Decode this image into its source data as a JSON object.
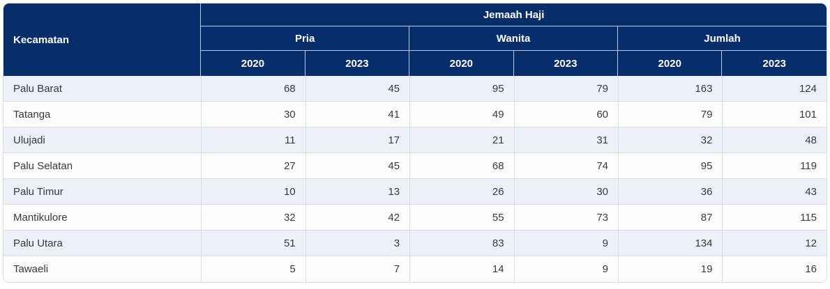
{
  "colors": {
    "header_bg": "#072e6b",
    "header_text": "#ffffff",
    "row_alt_bg": "#edf1f7",
    "row_bg": "#fdfdfd",
    "body_text": "#333a42",
    "grid_line": "#d6dee8"
  },
  "table": {
    "corner_header": "Kecamatan",
    "group_header": "Jemaah Haji",
    "subgroups": [
      "Pria",
      "Wanita",
      "Jumlah"
    ],
    "year_columns": [
      "2020",
      "2023",
      "2020",
      "2023",
      "2020",
      "2023"
    ],
    "rows": [
      {
        "kecamatan": "Palu Barat",
        "values": [
          68,
          45,
          95,
          79,
          163,
          124
        ]
      },
      {
        "kecamatan": "Tatanga",
        "values": [
          30,
          41,
          49,
          60,
          79,
          101
        ]
      },
      {
        "kecamatan": "Ulujadi",
        "values": [
          11,
          17,
          21,
          31,
          32,
          48
        ]
      },
      {
        "kecamatan": "Palu Selatan",
        "values": [
          27,
          45,
          68,
          74,
          95,
          119
        ]
      },
      {
        "kecamatan": "Palu Timur",
        "values": [
          10,
          13,
          26,
          30,
          36,
          43
        ]
      },
      {
        "kecamatan": "Mantikulore",
        "values": [
          32,
          42,
          55,
          73,
          87,
          115
        ]
      },
      {
        "kecamatan": "Palu Utara",
        "values": [
          51,
          3,
          83,
          9,
          134,
          12
        ]
      },
      {
        "kecamatan": "Tawaeli",
        "values": [
          5,
          7,
          14,
          9,
          19,
          16
        ]
      }
    ]
  },
  "chart_data": {
    "type": "table",
    "title": "Jemaah Haji",
    "row_label_column": "Kecamatan",
    "categories": [
      "Palu Barat",
      "Tatanga",
      "Ulujadi",
      "Palu Selatan",
      "Palu Timur",
      "Mantikulore",
      "Palu Utara",
      "Tawaeli"
    ],
    "columns": [
      "Kecamatan",
      "Pria 2020",
      "Pria 2023",
      "Wanita 2020",
      "Wanita 2023",
      "Jumlah 2020",
      "Jumlah 2023"
    ],
    "series": [
      {
        "name": "Pria 2020",
        "values": [
          68,
          30,
          11,
          27,
          10,
          32,
          51,
          5
        ]
      },
      {
        "name": "Pria 2023",
        "values": [
          45,
          41,
          17,
          45,
          13,
          42,
          3,
          7
        ]
      },
      {
        "name": "Wanita 2020",
        "values": [
          95,
          49,
          21,
          68,
          26,
          55,
          83,
          14
        ]
      },
      {
        "name": "Wanita 2023",
        "values": [
          79,
          60,
          31,
          74,
          30,
          73,
          9,
          9
        ]
      },
      {
        "name": "Jumlah 2020",
        "values": [
          163,
          79,
          32,
          95,
          36,
          87,
          134,
          19
        ]
      },
      {
        "name": "Jumlah 2023",
        "values": [
          124,
          101,
          48,
          119,
          43,
          115,
          12,
          16
        ]
      }
    ]
  }
}
